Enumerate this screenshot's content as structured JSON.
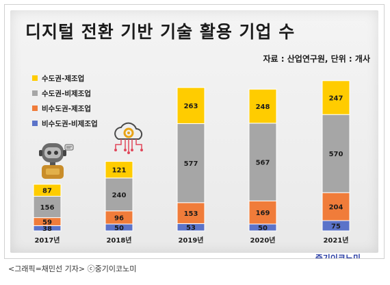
{
  "title": "디지털 전환 기반 기술 활용 기업 수",
  "source": "자료 : 산업연구원, 단위 : 개사",
  "caption": "<그래픽=채민선 기자>   ⓒ중기이코노미",
  "logo_text": "중기이코노미",
  "icons": [
    "robot-icon",
    "cloud-gear-icon"
  ],
  "chart_data": {
    "type": "bar",
    "stacked": true,
    "categories": [
      "2017년",
      "2018년",
      "2019년",
      "2020년",
      "2021년"
    ],
    "series": [
      {
        "name": "비수도권-비제조업",
        "color": "#5b73c9",
        "values": [
          38,
          50,
          53,
          50,
          75
        ]
      },
      {
        "name": "비수도권-제조업",
        "color": "#f07c3a",
        "values": [
          59,
          96,
          153,
          169,
          204
        ]
      },
      {
        "name": "수도권-비제조업",
        "color": "#a6a6a6",
        "values": [
          156,
          240,
          577,
          567,
          570
        ]
      },
      {
        "name": "수도권-제조업",
        "color": "#ffcc00",
        "values": [
          87,
          121,
          263,
          248,
          247
        ]
      }
    ],
    "legend_order": [
      "수도권-제조업",
      "수도권-비제조업",
      "비수도권-제조업",
      "비수도권-비제조업"
    ],
    "legend_position": "top-left",
    "grid": false
  }
}
